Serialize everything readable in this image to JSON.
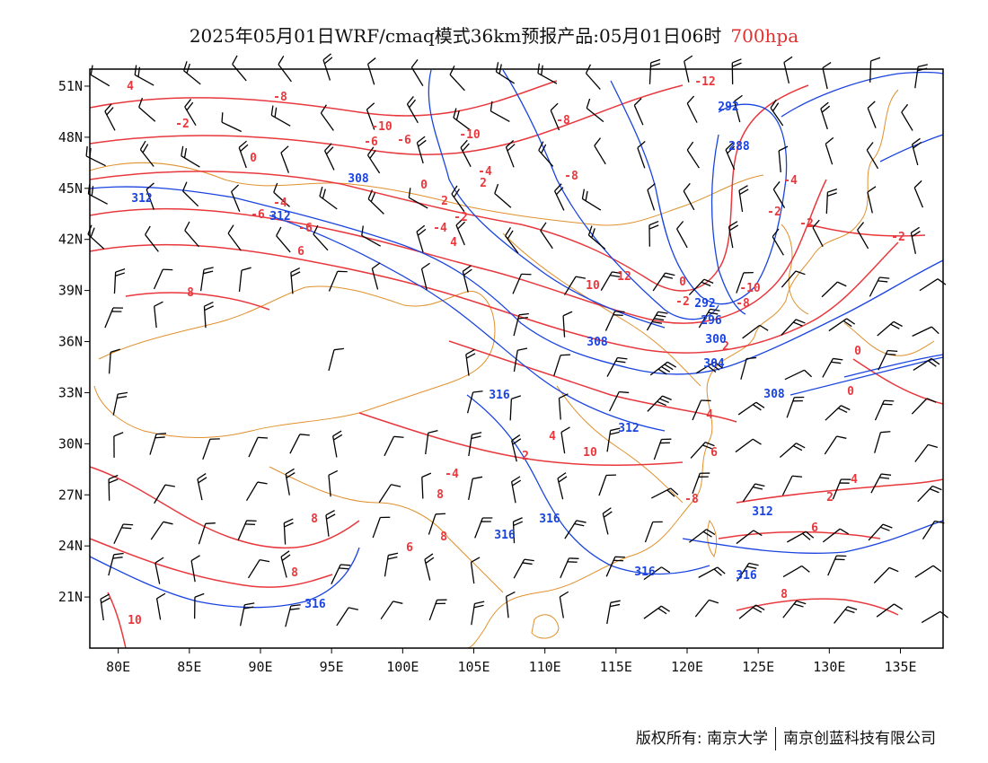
{
  "title": {
    "main": "2025年05月01日WRF/cmaq模式36km预报产品:05月01日06时",
    "level": "700hpa"
  },
  "axes": {
    "x_ticks": [
      "80E",
      "85E",
      "90E",
      "95E",
      "100E",
      "105E",
      "110E",
      "115E",
      "120E",
      "125E",
      "130E",
      "135E"
    ],
    "y_ticks": [
      "51N",
      "48N",
      "45N",
      "42N",
      "39N",
      "36N",
      "33N",
      "30N",
      "27N",
      "24N",
      "21N"
    ],
    "lon_range": [
      78,
      138
    ],
    "lat_range": [
      18,
      52
    ]
  },
  "colors": {
    "temperature_contour": "#e8383d",
    "theta_contour": "#1a44e0",
    "boundary": "#e0902c",
    "wind_barb": "#000000",
    "level_text": "#e03030"
  },
  "contour_labels": {
    "temperature": [
      "4",
      "-8",
      "-2",
      "0",
      "-10",
      "-6",
      "-6",
      "-10",
      "-8",
      "-12",
      "-4",
      "-8",
      "-6",
      "2",
      "0",
      "2",
      "-4",
      "-2",
      "-4",
      "4",
      "-6",
      "6",
      "8",
      "10",
      "12",
      "0",
      "-2",
      "-10",
      "-8",
      "2",
      "0",
      "-4",
      "-2",
      "-2",
      "0",
      "4",
      "2",
      "6",
      "8",
      "6",
      "-4",
      "10",
      "8",
      "8",
      "6",
      "8",
      "8",
      "4",
      "10",
      "2",
      "4",
      "-2",
      "-8"
    ],
    "theta": [
      "292",
      "288",
      "308",
      "312",
      "312",
      "292",
      "296",
      "300",
      "304",
      "308",
      "308",
      "316",
      "312",
      "316",
      "316",
      "312",
      "316",
      "316",
      "316"
    ]
  },
  "footer": {
    "copyright": "版权所有: 南京大学",
    "company": "南京创蓝科技有限公司"
  }
}
